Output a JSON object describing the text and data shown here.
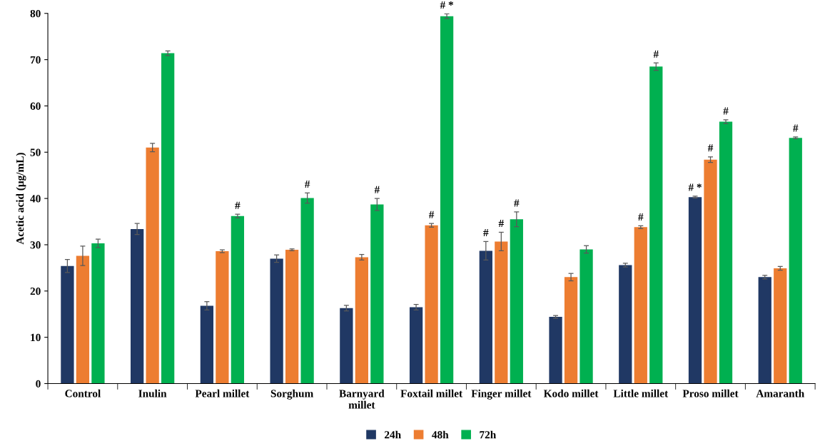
{
  "chart_data": {
    "type": "bar",
    "ylabel": "Acetic acid (μg/mL)",
    "categories": [
      "Control",
      "Inulin",
      "Pearl millet",
      "Sorghum",
      "Barnyard\nmillet",
      "Foxtail millet",
      "Finger millet",
      "Kodo millet",
      "Little millet",
      "Proso millet",
      "Amaranth"
    ],
    "series": [
      {
        "name": "24h",
        "color": "#203864",
        "values": [
          25.4,
          33.4,
          16.8,
          27.0,
          16.3,
          16.5,
          28.7,
          14.4,
          25.6,
          40.3,
          23.0
        ],
        "errors": [
          1.4,
          1.2,
          0.9,
          0.8,
          0.6,
          0.6,
          2.0,
          0.3,
          0.4,
          0.2,
          0.4
        ],
        "value_labels": [
          null,
          null,
          null,
          null,
          null,
          null,
          "#",
          null,
          null,
          "# *",
          null
        ]
      },
      {
        "name": "48h",
        "color": "#ed7d31",
        "values": [
          27.6,
          51.0,
          28.6,
          28.9,
          27.3,
          34.2,
          30.7,
          23.0,
          33.8,
          48.4,
          24.9
        ],
        "errors": [
          2.1,
          0.9,
          0.3,
          0.2,
          0.6,
          0.4,
          2.0,
          0.8,
          0.3,
          0.6,
          0.4
        ],
        "value_labels": [
          null,
          null,
          null,
          null,
          null,
          "#",
          "#",
          null,
          "#",
          "#",
          null
        ]
      },
      {
        "name": "72h",
        "color": "#00b050",
        "values": [
          30.3,
          71.4,
          36.2,
          40.1,
          38.7,
          79.4,
          35.5,
          29.0,
          68.5,
          56.6,
          53.1
        ],
        "errors": [
          0.9,
          0.5,
          0.4,
          1.1,
          1.3,
          0.5,
          1.6,
          0.8,
          0.8,
          0.4,
          0.2
        ],
        "value_labels": [
          null,
          null,
          "#",
          "#",
          "#",
          "# *",
          "#",
          null,
          "#",
          "#",
          "#"
        ]
      }
    ],
    "ylim": [
      0,
      80
    ],
    "yticks": [
      0,
      10,
      20,
      30,
      40,
      50,
      60,
      70,
      80
    ],
    "grid": false,
    "legend": "bottom"
  }
}
